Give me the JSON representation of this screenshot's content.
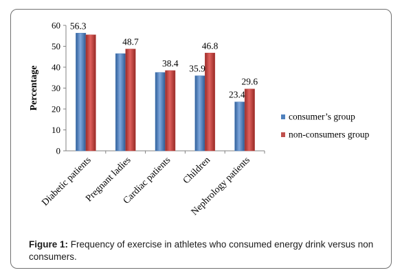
{
  "figure": {
    "caption_label": "Figure 1:",
    "caption_text": " Frequency of exercise in athletes who consumed energy drink versus non consumers."
  },
  "chart_data": {
    "type": "bar",
    "ylabel": "Percentage",
    "xlabel": "",
    "ylim": [
      0,
      60
    ],
    "yticks": [
      0,
      10,
      20,
      30,
      40,
      50,
      60
    ],
    "categories": [
      "Diabetic patients",
      "Pregnant ladies",
      "Cardiac patients",
      "Children",
      "Nephrology patients"
    ],
    "series": [
      {
        "name": "consumer’s group",
        "color": "#4f81bd",
        "values": [
          56.3,
          46.5,
          37.5,
          35.9,
          23.4
        ],
        "labels": [
          "56.3",
          "",
          "",
          "35.9",
          "23.4"
        ]
      },
      {
        "name": "non-consumers group",
        "color": "#c0504d",
        "values": [
          55.5,
          48.7,
          38.4,
          46.8,
          29.6
        ],
        "labels": [
          "",
          "48.7",
          "38.4",
          "46.8",
          "29.6"
        ]
      }
    ],
    "legend": "right",
    "grid": false
  }
}
